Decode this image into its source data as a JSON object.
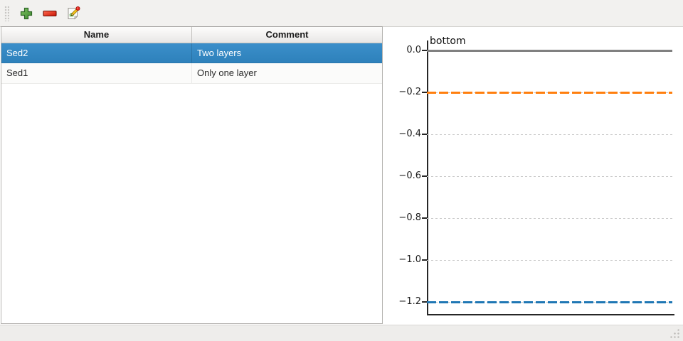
{
  "toolbar": {
    "buttons": [
      {
        "id": "add",
        "icon": "plus-icon"
      },
      {
        "id": "remove",
        "icon": "minus-icon"
      },
      {
        "id": "edit",
        "icon": "edit-icon"
      }
    ]
  },
  "table": {
    "columns": [
      {
        "label": "Name"
      },
      {
        "label": "Comment"
      }
    ],
    "rows": [
      {
        "name": "Sed2",
        "comment": "Two layers",
        "selected": true
      },
      {
        "name": "Sed1",
        "comment": "Only one layer",
        "selected": false
      }
    ]
  },
  "chart_data": {
    "type": "line",
    "subtype": "horizontal-lines",
    "title": "",
    "xlabel": "",
    "ylabel": "",
    "annotation": {
      "text": "bottom",
      "at_y": 0.0
    },
    "ylim": [
      -1.26,
      0.05
    ],
    "ytick_labels": [
      "0.0",
      "−0.2",
      "−0.4",
      "−0.6",
      "−0.8",
      "−1.0",
      "−1.2"
    ],
    "ytick_values": [
      0.0,
      -0.2,
      -0.4,
      -0.6,
      -0.8,
      -1.0,
      -1.2
    ],
    "grid": true,
    "grid_color": "#c9c9c9",
    "series": [
      {
        "name": "surface-line",
        "y": 0.0,
        "color": "#808080",
        "linestyle": "solid",
        "linewidth": 3
      },
      {
        "name": "layer-interface-line",
        "y": -0.2,
        "color": "#ff7f0e",
        "linestyle": "dashed",
        "linewidth": 3
      },
      {
        "name": "bottom-line",
        "y": -1.2,
        "color": "#1f77b4",
        "linestyle": "dashed",
        "linewidth": 3
      }
    ]
  },
  "colors": {
    "selection_blue": "#3086c3",
    "toolbar_bg": "#f2f1ef",
    "statusbar_bg": "#eeedeb",
    "axis_color": "#262626"
  }
}
